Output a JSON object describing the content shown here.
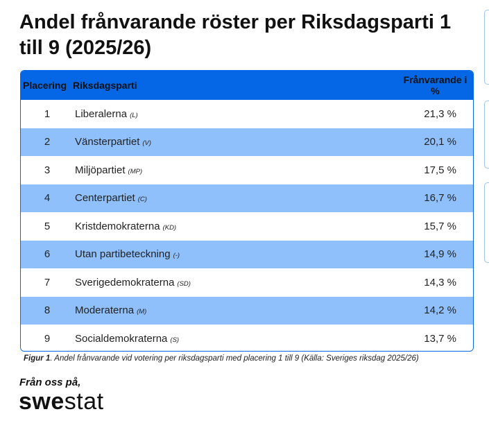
{
  "title": "Andel frånvarande röster per Riksdagsparti 1 till 9 (2025/26)",
  "table": {
    "headers": {
      "placement": "Placering",
      "party": "Riksdagsparti",
      "percent": "Frånvarande i %"
    },
    "rows": [
      {
        "place": "1",
        "party": "Liberalerna",
        "abbr": "(L)",
        "pct": "21,3 %"
      },
      {
        "place": "2",
        "party": "Vänsterpartiet",
        "abbr": "(V)",
        "pct": "20,1 %"
      },
      {
        "place": "3",
        "party": "Miljöpartiet",
        "abbr": "(MP)",
        "pct": "17,5 %"
      },
      {
        "place": "4",
        "party": "Centerpartiet",
        "abbr": "(C)",
        "pct": "16,7 %"
      },
      {
        "place": "5",
        "party": "Kristdemokraterna",
        "abbr": "(KD)",
        "pct": "15,7 %"
      },
      {
        "place": "6",
        "party": "Utan partibeteckning",
        "abbr": "(-)",
        "pct": "14,9 %"
      },
      {
        "place": "7",
        "party": "Sverigedemokraterna",
        "abbr": "(SD)",
        "pct": "14,3 %"
      },
      {
        "place": "8",
        "party": "Moderaterna",
        "abbr": "(M)",
        "pct": "14,2 %"
      },
      {
        "place": "9",
        "party": "Socialdemokraterna",
        "abbr": "(S)",
        "pct": "13,7 %"
      }
    ]
  },
  "caption": {
    "label": "Figur 1",
    "text": ". Andel frånvarande vid votering per riksdagsparti med placering 1 till 9 (Källa: Sveriges riksdag 2025/26)"
  },
  "footer": {
    "from_us": "Från oss på,",
    "logo_bold": "swe",
    "logo_rest": "stat"
  },
  "colors": {
    "header_bg": "#0566e6",
    "alt_row_bg": "#8fc0fb",
    "border": "#0a66e8"
  }
}
